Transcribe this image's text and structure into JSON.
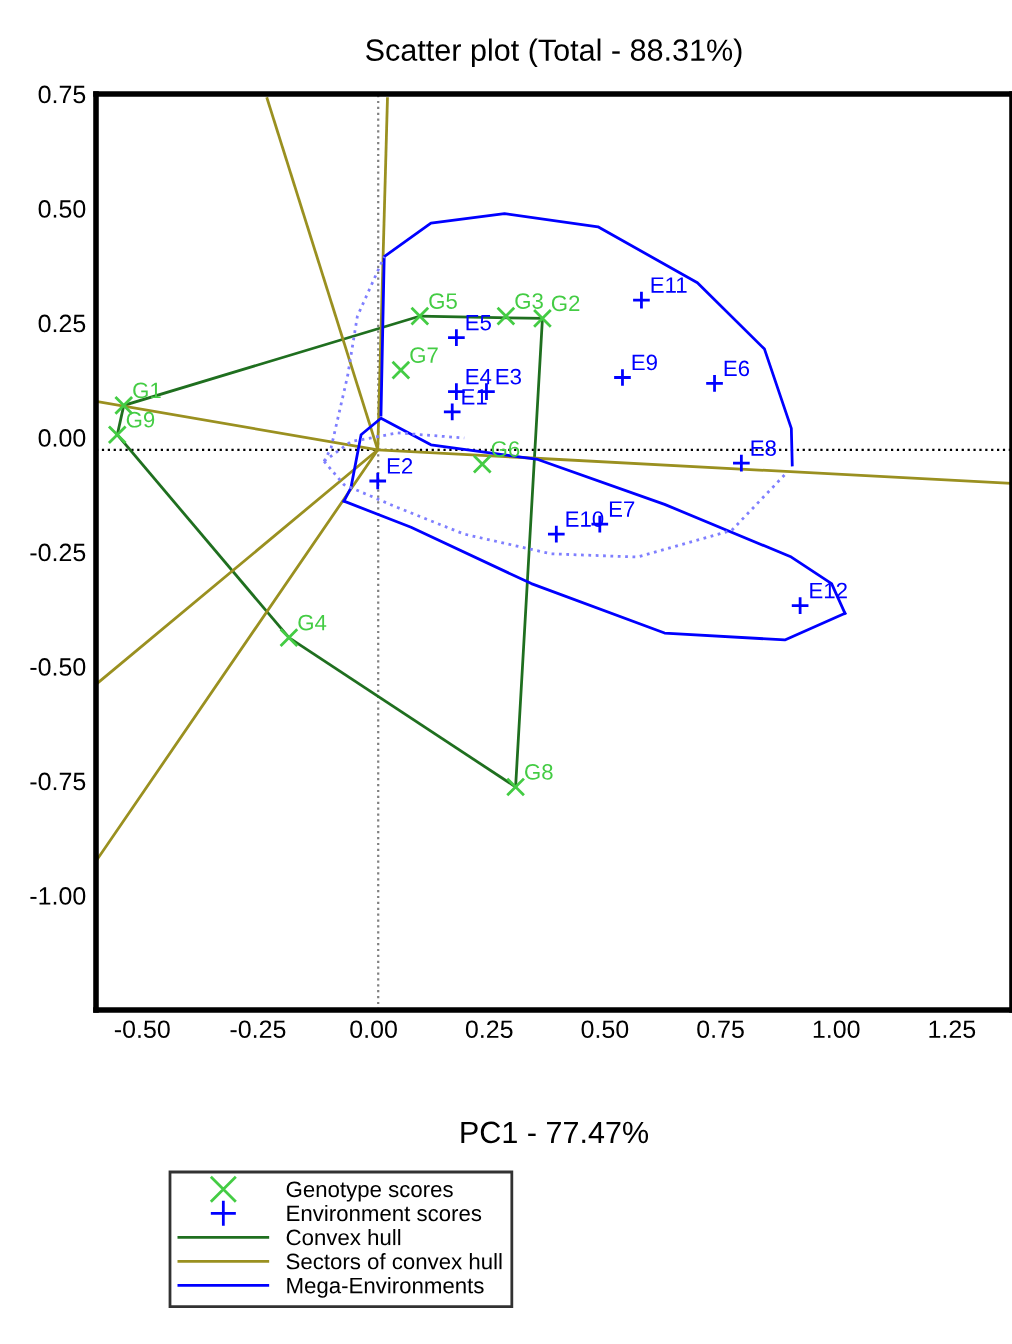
{
  "chart_data": {
    "type": "scatter",
    "title": "Scatter plot (Total - 88.31%)",
    "xlabel": "PC1 - 77.47%",
    "xlim": [
      -0.6,
      1.38
    ],
    "ylim": [
      -1.25,
      0.75
    ],
    "xticks": [
      {
        "value": -0.5,
        "label": "-0.50"
      },
      {
        "value": -0.25,
        "label": "-0.25"
      },
      {
        "value": 0,
        "label": "0.00"
      },
      {
        "value": 0.25,
        "label": "0.25"
      },
      {
        "value": 0.5,
        "label": "0.50"
      },
      {
        "value": 0.75,
        "label": "0.75"
      },
      {
        "value": 1,
        "label": "1.00"
      },
      {
        "value": 1.25,
        "label": "1.25"
      }
    ],
    "yticks": [
      {
        "value": -1,
        "label": "-1.00"
      },
      {
        "value": -0.75,
        "label": "-0.75"
      },
      {
        "value": -0.5,
        "label": "-0.50"
      },
      {
        "value": -0.25,
        "label": "-0.25"
      },
      {
        "value": 0,
        "label": "0.00"
      },
      {
        "value": 0.25,
        "label": "0.25"
      },
      {
        "value": 0.5,
        "label": "0.50"
      },
      {
        "value": 0.75,
        "label": "0.75"
      }
    ],
    "grid": false,
    "legend": "bottom",
    "ref_lines": [
      {
        "axis": "x",
        "value": 0.01,
        "color": "#808080",
        "line_style": "dotted"
      },
      {
        "axis": "y",
        "value": -0.027,
        "color": "#000000",
        "line_style": "dotted"
      }
    ],
    "series": [
      {
        "name": "Genotype scores",
        "marker": "cross",
        "color": "#44cc44",
        "x": [
          -0.54,
          0.365,
          0.286,
          -0.183,
          0.1,
          0.235,
          0.059,
          0.307,
          -0.554
        ],
        "values": [
          0.07,
          0.26,
          0.265,
          -0.437,
          0.265,
          -0.058,
          0.147,
          -0.763,
          0.006
        ],
        "value_labels": [
          "G1",
          "G2",
          "G3",
          "G4",
          "G5",
          "G6",
          "G7",
          "G8",
          "G9"
        ]
      },
      {
        "name": "Environment scores",
        "marker": "plus",
        "color": "#0000ff",
        "x": [
          0.17,
          0.009,
          0.244,
          0.179,
          0.179,
          0.737,
          0.489,
          0.795,
          0.538,
          0.395,
          0.579,
          0.922
        ],
        "values": [
          0.056,
          -0.095,
          0.1,
          0.1,
          0.218,
          0.118,
          -0.189,
          -0.056,
          0.131,
          -0.211,
          0.3,
          -0.367
        ],
        "value_labels": [
          "E1",
          "E2",
          "E3",
          "E4",
          "E5",
          "E6",
          "E7",
          "E8",
          "E9",
          "E10",
          "E11",
          "E12"
        ]
      },
      {
        "name": "Convex hull",
        "type": "line",
        "line_style": "solid",
        "color": "#1f6f1f",
        "x": [
          -0.54,
          0.1
        ],
        "values": [
          0.07,
          0.265
        ]
      },
      {
        "type": "line",
        "line_style": "solid",
        "color": "#1f6f1f",
        "x": [
          0.1,
          0.365
        ],
        "values": [
          0.265,
          0.26
        ]
      },
      {
        "type": "line",
        "line_style": "solid",
        "color": "#1f6f1f",
        "x": [
          0.365,
          0.307
        ],
        "values": [
          0.26,
          -0.763
        ]
      },
      {
        "type": "line",
        "line_style": "solid",
        "color": "#1f6f1f",
        "x": [
          -0.183,
          0.307
        ],
        "values": [
          -0.437,
          -0.763
        ]
      },
      {
        "type": "line",
        "line_style": "solid",
        "color": "#1f6f1f",
        "x": [
          -0.554,
          -0.183
        ],
        "values": [
          0.006,
          -0.437
        ]
      },
      {
        "type": "line",
        "line_style": "solid",
        "color": "#1f6f1f",
        "x": [
          -0.554,
          -0.54
        ],
        "values": [
          0.006,
          0.07
        ]
      },
      {
        "name": "Sectors of convex hull",
        "type": "line",
        "line_style": "solid",
        "color": "#9a9020",
        "x": [
          -0.23,
          0.009
        ],
        "values": [
          0.74,
          -0.027
        ]
      },
      {
        "type": "line",
        "line_style": "solid",
        "color": "#9a9020",
        "x": [
          0.009,
          0.03
        ],
        "values": [
          -0.027,
          0.74
        ]
      },
      {
        "type": "line",
        "line_style": "solid",
        "color": "#9a9020",
        "x": [
          -0.6,
          0.009,
          1.376
        ],
        "values": [
          0.079,
          -0.027,
          -0.1
        ]
      },
      {
        "type": "line",
        "line_style": "solid",
        "color": "#9a9020",
        "x": [
          -0.6,
          0.009
        ],
        "values": [
          -0.539,
          -0.027
        ]
      },
      {
        "type": "line",
        "line_style": "solid",
        "color": "#9a9020",
        "x": [
          -0.6,
          0.009
        ],
        "values": [
          -0.925,
          -0.027
        ]
      },
      {
        "name": "Mega-Environments",
        "type": "line",
        "line_style": "solid",
        "color": "#0000ff",
        "x": [
          0.016,
          0.023,
          0.124,
          0.283,
          0.485,
          0.7,
          0.845,
          0.903,
          0.905
        ],
        "values": [
          0.049,
          0.395,
          0.468,
          0.489,
          0.46,
          0.338,
          0.193,
          0.02,
          -0.06
        ]
      },
      {
        "type": "line",
        "line_style": "solid",
        "color": "#0000ff",
        "x": [
          -0.064,
          -0.049,
          -0.027,
          0.016,
          0.124,
          0.355,
          0.629,
          0.903,
          0.99,
          1.019
        ],
        "values": [
          -0.139,
          -0.11,
          0.006,
          0.042,
          -0.016,
          -0.048,
          -0.146,
          -0.261,
          -0.319,
          -0.384
        ]
      },
      {
        "type": "line",
        "line_style": "solid",
        "color": "#0000ff",
        "x": [
          -0.064,
          0.081,
          0.341,
          0.629,
          0.889,
          1.019
        ],
        "values": [
          -0.139,
          -0.196,
          -0.319,
          -0.427,
          -0.442,
          -0.384
        ]
      },
      {
        "type": "line",
        "line_style": "dotted",
        "color": "#7f7fff",
        "x": [
          -0.107,
          -0.092,
          -0.056,
          -0.035,
          0.023
        ],
        "values": [
          -0.052,
          -0.023,
          0.135,
          0.265,
          0.395
        ]
      },
      {
        "type": "line",
        "line_style": "dotted",
        "color": "#7f7fff",
        "x": [
          -0.107,
          -0.064,
          0.052,
          0.196,
          0.384,
          0.571,
          0.774,
          0.889
        ],
        "values": [
          -0.052,
          -0.103,
          -0.153,
          -0.211,
          -0.254,
          -0.261,
          -0.203,
          -0.081
        ]
      },
      {
        "type": "line",
        "line_style": "dotted",
        "color": "#7f7fff",
        "x": [
          -0.107,
          -0.049,
          0.052,
          0.196
        ],
        "values": [
          -0.052,
          -0.009,
          0.01,
          -0.001
        ]
      }
    ]
  }
}
